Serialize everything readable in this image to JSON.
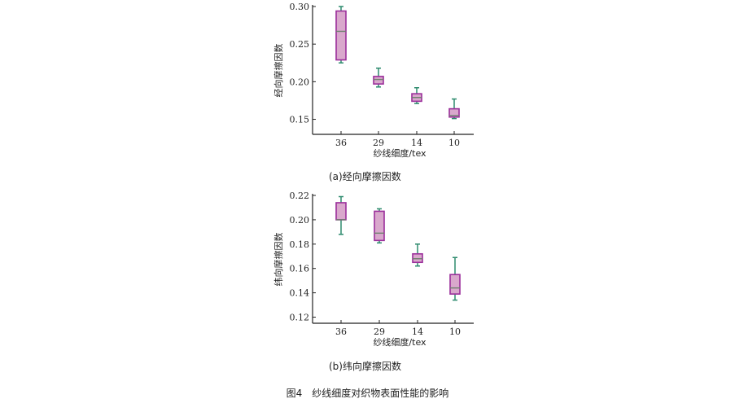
{
  "colors": {
    "box_edge": "#9b2f9b",
    "box_fill": "#d9a8cc",
    "whisker": "#2e8b6e",
    "median": "#6e7f6e",
    "axis": "#222222"
  },
  "chart_data": [
    {
      "type": "box",
      "xlabel": "纱线细度/tex",
      "ylabel": "经向摩擦因数",
      "caption": "(a)经向摩擦因数",
      "categories": [
        "36",
        "29",
        "14",
        "10"
      ],
      "ylim": [
        0.13,
        0.3
      ],
      "yticks": [
        "0.30",
        "0.25",
        "0.20",
        "0.15"
      ],
      "ytick_values": [
        0.3,
        0.25,
        0.2,
        0.15
      ],
      "boxes": [
        {
          "min": 0.225,
          "q1": 0.229,
          "median": 0.267,
          "q3": 0.294,
          "max": 0.3
        },
        {
          "min": 0.193,
          "q1": 0.197,
          "median": 0.203,
          "q3": 0.207,
          "max": 0.218
        },
        {
          "min": 0.171,
          "q1": 0.174,
          "median": 0.179,
          "q3": 0.184,
          "max": 0.192
        },
        {
          "min": 0.151,
          "q1": 0.153,
          "median": 0.155,
          "q3": 0.164,
          "max": 0.177
        }
      ]
    },
    {
      "type": "box",
      "xlabel": "纱线细度/tex",
      "ylabel": "纬向摩擦因数",
      "caption": "(b)纬向摩擦因数",
      "categories": [
        "36",
        "29",
        "14",
        "10"
      ],
      "ylim": [
        0.115,
        0.22
      ],
      "yticks": [
        "0.22",
        "0.20",
        "0.18",
        "0.16",
        "0.14",
        "0.12"
      ],
      "ytick_values": [
        0.22,
        0.2,
        0.18,
        0.16,
        0.14,
        0.12
      ],
      "boxes": [
        {
          "min": 0.188,
          "q1": 0.2,
          "median": 0.2,
          "q3": 0.214,
          "max": 0.219
        },
        {
          "min": 0.181,
          "q1": 0.183,
          "median": 0.189,
          "q3": 0.207,
          "max": 0.209
        },
        {
          "min": 0.162,
          "q1": 0.165,
          "median": 0.168,
          "q3": 0.172,
          "max": 0.18
        },
        {
          "min": 0.134,
          "q1": 0.139,
          "median": 0.144,
          "q3": 0.155,
          "max": 0.169
        }
      ]
    }
  ],
  "figure_caption": "图4　纱线细度对织物表面性能的影响"
}
